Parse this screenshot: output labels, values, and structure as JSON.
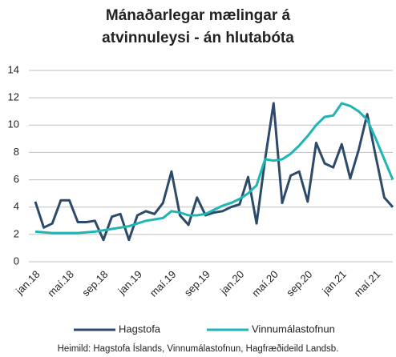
{
  "chart_data": {
    "type": "line",
    "title": "Mánaðarlegar mælingar á atvinnuleysi - án hlutabóta",
    "categories": [
      "jan.18",
      null,
      null,
      null,
      "maí.18",
      null,
      null,
      null,
      "sep.18",
      null,
      null,
      null,
      "jan.19",
      null,
      null,
      null,
      "maí.19",
      null,
      null,
      null,
      "sep.19",
      null,
      null,
      null,
      "jan.20",
      null,
      null,
      null,
      "maí.20",
      null,
      null,
      null,
      "sep.20",
      null,
      null,
      null,
      "jan.21",
      null,
      null,
      null,
      "maí.21",
      null,
      null
    ],
    "series": [
      {
        "name": "Hagstofa",
        "color": "#2e4a6b",
        "values": [
          4.4,
          2.5,
          2.8,
          4.5,
          4.5,
          2.9,
          2.9,
          3.0,
          1.6,
          3.3,
          3.5,
          1.6,
          3.4,
          3.7,
          3.5,
          4.3,
          6.6,
          3.4,
          2.7,
          4.7,
          3.4,
          3.6,
          3.7,
          4.0,
          4.2,
          6.2,
          2.8,
          7.5,
          11.6,
          4.3,
          6.3,
          6.6,
          4.4,
          8.7,
          7.2,
          6.9,
          8.6,
          6.1,
          8.2,
          10.8,
          7.7,
          4.7,
          4.0
        ]
      },
      {
        "name": "Vinnumálastofnun",
        "color": "#1fb5b5",
        "values": [
          2.2,
          2.15,
          2.1,
          2.1,
          2.1,
          2.1,
          2.15,
          2.2,
          2.3,
          2.4,
          2.5,
          2.6,
          2.8,
          3.0,
          3.1,
          3.2,
          3.7,
          3.6,
          3.4,
          3.4,
          3.5,
          3.8,
          4.1,
          4.3,
          4.6,
          5.0,
          5.6,
          7.5,
          7.4,
          7.5,
          7.9,
          8.5,
          9.2,
          10.0,
          10.6,
          10.7,
          11.6,
          11.4,
          11.0,
          10.4,
          9.0,
          7.5,
          6.0
        ]
      }
    ],
    "ylim": [
      0,
      14
    ],
    "yticks": [
      0,
      2,
      4,
      6,
      8,
      10,
      12,
      14
    ],
    "grid": true,
    "legend": "bottom",
    "source": "Heimild: Hagstofa Íslands, Vinnumálastofnun, Hagfræðideild Landsb."
  }
}
